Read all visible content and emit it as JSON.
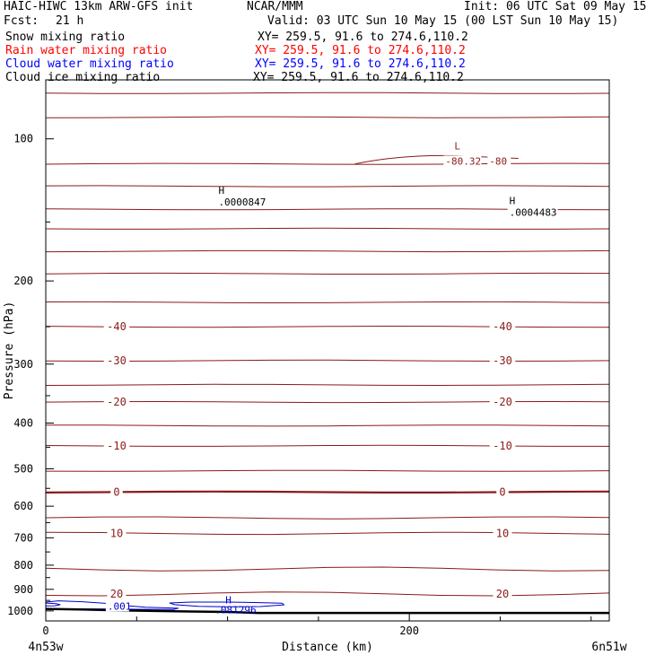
{
  "header": {
    "model": "HAIC-HIWC 13km ARW-GFS init",
    "org": "NCAR/MMM",
    "init": "Init: 06 UTC Sat 09 May 15",
    "fcst_label": "Fcst:",
    "fcst_value": "21 h",
    "valid": "Valid: 03 UTC Sun 10 May 15 (00 LST Sun 10 May 15)"
  },
  "fields": [
    {
      "name": "Snow mixing ratio",
      "xy": "XY= 259.5, 91.6 to 274.6,110.2",
      "color": "#000000"
    },
    {
      "name": "Rain water mixing ratio",
      "xy": "XY= 259.5, 91.6 to 274.6,110.2",
      "color": "#ff0000"
    },
    {
      "name": "Cloud water mixing ratio",
      "xy": "XY= 259.5, 91.6 to 274.6,110.2",
      "color": "#0000ff"
    },
    {
      "name": "Cloud ice mixing ratio",
      "xy": "XY= 259.5, 91.6 to 274.6,110.2",
      "color": "#000000"
    }
  ],
  "colors": {
    "temperature": "#8b1a1a",
    "cloud_water": "#0000cc",
    "ground": "#000000",
    "frame": "#000000"
  },
  "chart_data": {
    "type": "line",
    "xlabel": "Distance (km)",
    "ylabel": "Pressure (hPa)",
    "xlim": [
      0,
      310
    ],
    "ylim": [
      1050,
      75
    ],
    "y_scale": "log",
    "x_ticks": [
      0,
      200
    ],
    "y_ticks": [
      100,
      200,
      300,
      400,
      500,
      600,
      700,
      800,
      900,
      1000
    ],
    "x_ends": {
      "left": "4n53w",
      "right": "6n51w"
    },
    "temperature_levels": [
      {
        "p": 80,
        "label": "",
        "emph": false
      },
      {
        "p": 90,
        "label": "",
        "emph": false
      },
      {
        "p": 113,
        "label": "",
        "emph": false
      },
      {
        "p": 126,
        "label": "",
        "emph": false
      },
      {
        "p": 141,
        "label": "",
        "emph": false
      },
      {
        "p": 155,
        "label": "",
        "emph": false
      },
      {
        "p": 173,
        "label": "",
        "emph": false
      },
      {
        "p": 193,
        "label": "",
        "emph": false
      },
      {
        "p": 222,
        "label": "",
        "emph": false
      },
      {
        "p": 250,
        "label": "-40",
        "emph": false
      },
      {
        "p": 295,
        "label": "-30",
        "emph": false
      },
      {
        "p": 332,
        "label": "",
        "emph": false
      },
      {
        "p": 361,
        "label": "-20",
        "emph": false
      },
      {
        "p": 405,
        "label": "",
        "emph": false
      },
      {
        "p": 447,
        "label": "-10",
        "emph": false
      },
      {
        "p": 505,
        "label": "",
        "emph": false
      },
      {
        "p": 560,
        "label": "0",
        "emph": true
      },
      {
        "p": 635,
        "label": "",
        "emph": false
      },
      {
        "p": 685,
        "label": "10",
        "emph": false
      },
      {
        "p": 815,
        "label": "",
        "emph": false
      },
      {
        "p": 920,
        "label": "20",
        "emph": false
      }
    ],
    "temperature_extrema": [
      {
        "type": "L",
        "value": "-80.32",
        "x": 210,
        "p": 109
      },
      {
        "type": "label",
        "value": "-80",
        "x": 245,
        "p": 109
      }
    ],
    "snow_extrema": [
      {
        "type": "H",
        "value": ".0000847",
        "x": 95,
        "p": 133
      },
      {
        "type": "H",
        "value": ".0004483",
        "x": 255,
        "p": 140
      }
    ],
    "cloud_water": {
      "contours": [
        {
          "label": ".001",
          "points": [
            [
              0,
              958
            ],
            [
              7,
              952
            ],
            [
              20,
              956
            ],
            [
              32,
              963
            ],
            [
              45,
              975
            ],
            [
              55,
              982
            ],
            [
              73,
              987
            ],
            [
              70,
              993
            ],
            [
              50,
              992
            ],
            [
              32,
              990
            ],
            [
              15,
              990
            ],
            [
              0,
              990
            ]
          ]
        },
        {
          "label": "",
          "points": [
            [
              0,
              962
            ],
            [
              6,
              966
            ],
            [
              8,
              970
            ],
            [
              5,
              975
            ],
            [
              0,
              976
            ]
          ]
        },
        {
          "label": "",
          "points": [
            [
              68,
              962
            ],
            [
              80,
              958
            ],
            [
              100,
              958
            ],
            [
              115,
              960
            ],
            [
              130,
              963
            ],
            [
              131,
              971
            ],
            [
              118,
              979
            ],
            [
              100,
              980
            ],
            [
              84,
              978
            ],
            [
              71,
              970
            ],
            [
              68,
              962
            ]
          ]
        }
      ],
      "extrema": [
        {
          "type": "H",
          "value": ".081296",
          "x": 89,
          "p": 968
        }
      ]
    },
    "terrain": {
      "x": [
        0,
        20,
        40,
        60,
        80,
        100,
        117,
        150,
        200,
        250,
        310
      ],
      "p": [
        990,
        993,
        997,
        1000,
        1003,
        1005,
        1010,
        1010,
        1010,
        1010,
        1010
      ]
    }
  }
}
